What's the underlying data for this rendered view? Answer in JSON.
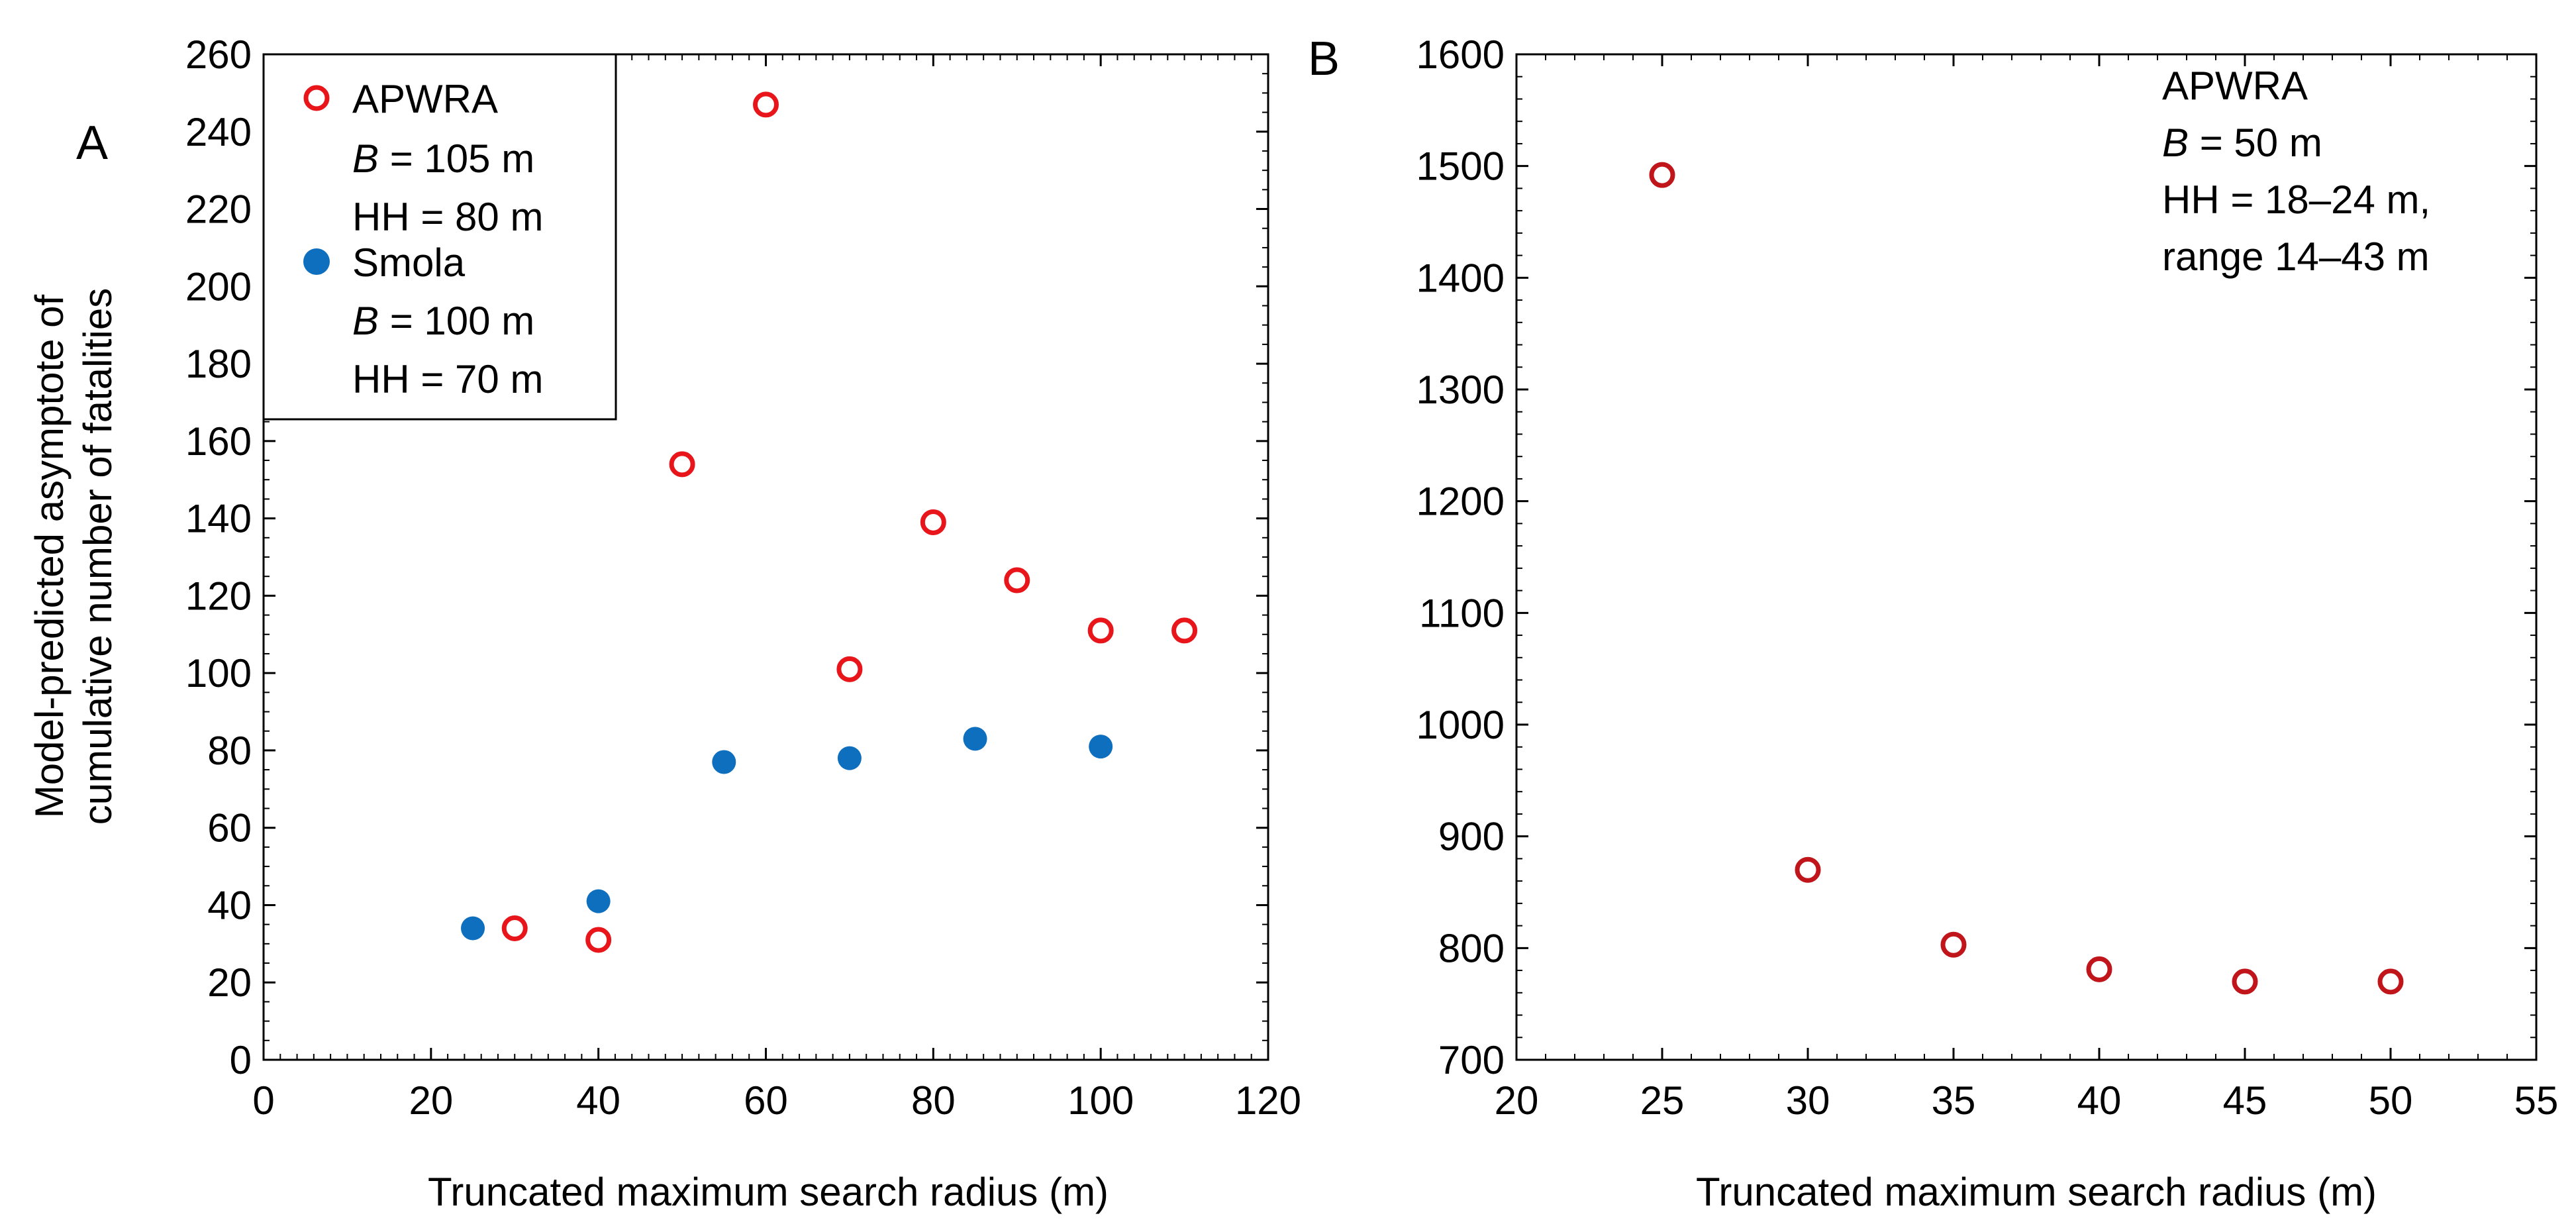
{
  "chart_data": [
    {
      "panel": "A",
      "type": "scatter",
      "xlabel": "Truncated maximum search radius (m)",
      "ylabel": "Model-predicted asymptote of cumulative number of fatalities",
      "xlim": [
        0,
        120
      ],
      "ylim": [
        0,
        260
      ],
      "xticks": [
        0,
        20,
        40,
        60,
        80,
        100,
        120
      ],
      "yticks": [
        0,
        20,
        40,
        60,
        80,
        100,
        120,
        140,
        160,
        180,
        200,
        220,
        240,
        260
      ],
      "grid": false,
      "legend_position": "top-left",
      "series": [
        {
          "name": "APWRA",
          "marker": "open-circle",
          "color": "#e8161b",
          "legend_lines": [
            "B = 105 m",
            "HH = 80 m"
          ],
          "x": [
            30,
            40,
            50,
            60,
            70,
            80,
            90,
            100,
            110
          ],
          "y": [
            34,
            31,
            154,
            247,
            101,
            139,
            124,
            111,
            111
          ]
        },
        {
          "name": "Smola",
          "marker": "filled-circle",
          "color": "#0f6fbf",
          "legend_lines": [
            "B = 100 m",
            "HH = 70 m"
          ],
          "x": [
            25,
            40,
            55,
            70,
            85,
            100
          ],
          "y": [
            34,
            41,
            77,
            78,
            83,
            81
          ]
        }
      ]
    },
    {
      "panel": "B",
      "type": "scatter",
      "xlabel": "Truncated maximum search radius (m)",
      "ylabel": "",
      "xlim": [
        20,
        55
      ],
      "ylim": [
        700,
        1600
      ],
      "xticks": [
        20,
        25,
        30,
        35,
        40,
        45,
        50,
        55
      ],
      "yticks": [
        700,
        800,
        900,
        1000,
        1100,
        1200,
        1300,
        1400,
        1500,
        1600
      ],
      "grid": false,
      "annotation_lines": [
        "APWRA",
        "B = 50 m",
        "HH = 18–24 m,",
        "range 14–43 m"
      ],
      "series": [
        {
          "name": "APWRA",
          "marker": "open-circle",
          "color": "#c0161b",
          "x": [
            25,
            30,
            35,
            40,
            45,
            50
          ],
          "y": [
            1492,
            870,
            803,
            781,
            770,
            770
          ]
        }
      ]
    }
  ]
}
